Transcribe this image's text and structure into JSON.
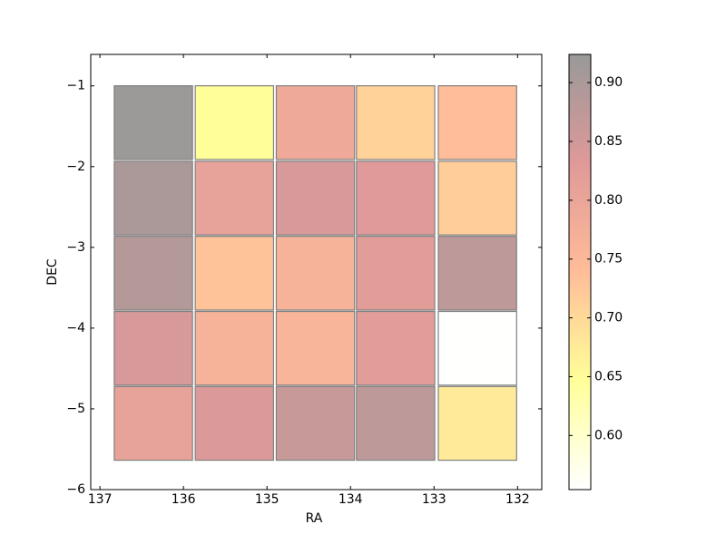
{
  "chart_data": {
    "type": "heatmap",
    "x_label": "RA",
    "y_label": "DEC",
    "x": [
      136.36,
      135.39,
      134.42,
      133.46,
      132.48
    ],
    "y": [
      -1.455,
      -2.39,
      -3.32,
      -4.25,
      -5.18
    ],
    "values": [
      [
        0.92,
        0.648,
        0.789,
        0.71,
        0.738
      ],
      [
        0.9,
        0.809,
        0.842,
        0.829,
        0.717
      ],
      [
        0.888,
        0.731,
        0.765,
        0.822,
        0.875
      ],
      [
        0.842,
        0.765,
        0.759,
        0.822,
        0.555
      ],
      [
        0.809,
        0.836,
        0.862,
        0.875,
        0.676
      ]
    ],
    "xlim": [
      137.11,
      131.71
    ],
    "xticks": [
      137,
      136,
      135,
      134,
      133,
      132
    ],
    "ylim": [
      -6,
      -0.61
    ],
    "yticks": [
      {
        "value": -1,
        "label": "−1"
      },
      {
        "value": -2,
        "label": "−2"
      },
      {
        "value": -3,
        "label": "−3"
      },
      {
        "value": -4,
        "label": "−4"
      },
      {
        "value": -5,
        "label": "−5"
      },
      {
        "value": -6,
        "label": "−6"
      }
    ],
    "colormap": [
      "#ffffff",
      "#ffff00",
      "#ff5a00",
      "#af0000",
      "#000000"
    ],
    "alpha": 0.4,
    "clim": [
      0.554,
      0.924
    ],
    "cticks": [
      {
        "value": 0.6,
        "label": "0.60"
      },
      {
        "value": 0.65,
        "label": "0.65"
      },
      {
        "value": 0.7,
        "label": "0.70"
      },
      {
        "value": 0.75,
        "label": "0.75"
      },
      {
        "value": 0.8,
        "label": "0.80"
      },
      {
        "value": 0.85,
        "label": "0.85"
      },
      {
        "value": 0.9,
        "label": "0.90"
      }
    ]
  }
}
